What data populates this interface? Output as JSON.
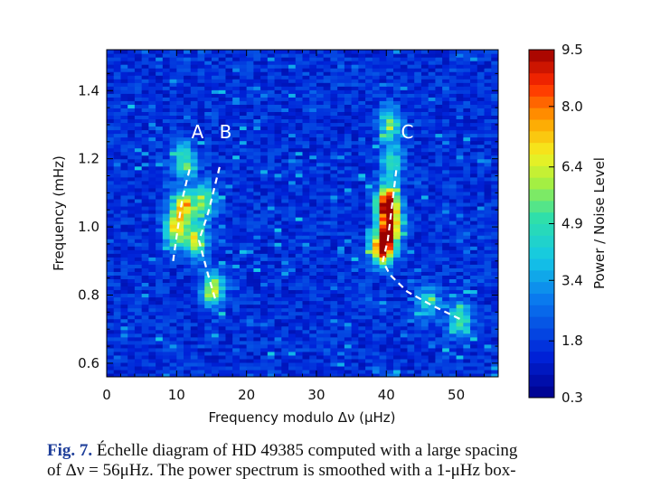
{
  "chart_data": {
    "type": "heatmap",
    "xlabel": "Frequency modulo Δν (μHz)",
    "ylabel": "Frequency (mHz)",
    "xlim": [
      0,
      56
    ],
    "ylim": [
      0.56,
      1.52
    ],
    "x_ticks": [
      "0",
      "10",
      "20",
      "30",
      "40",
      "50"
    ],
    "y_ticks": [
      "0.6",
      "0.8",
      "1.0",
      "1.2",
      "1.4"
    ],
    "colorbar": {
      "label": "Power / Noise Level",
      "range": [
        0.3,
        9.5
      ],
      "ticks": [
        "0.3",
        "1.8",
        "3.4",
        "4.9",
        "6.4",
        "8.0",
        "9.5"
      ]
    },
    "ridge_labels": [
      {
        "text": "A",
        "x": 13,
        "y": 1.26
      },
      {
        "text": "B",
        "x": 17,
        "y": 1.26
      },
      {
        "text": "C",
        "x": 43,
        "y": 1.26
      }
    ],
    "ridges": [
      {
        "label": "A",
        "points": [
          [
            9.5,
            0.9
          ],
          [
            10.2,
            1.0
          ],
          [
            10.8,
            1.08
          ],
          [
            11.5,
            1.14
          ],
          [
            12.0,
            1.18
          ]
        ]
      },
      {
        "label": "B",
        "points": [
          [
            15.5,
            0.79
          ],
          [
            14.5,
            0.86
          ],
          [
            13.2,
            0.96
          ],
          [
            14.5,
            1.04
          ],
          [
            16.2,
            1.18
          ]
        ]
      },
      {
        "label": "C",
        "points": [
          [
            50.5,
            0.73
          ],
          [
            46.5,
            0.77
          ],
          [
            43.0,
            0.81
          ],
          [
            40.5,
            0.86
          ],
          [
            39.5,
            0.9
          ],
          [
            40.2,
            0.96
          ],
          [
            40.8,
            1.06
          ],
          [
            41.5,
            1.18
          ]
        ]
      }
    ],
    "peaks": [
      {
        "x": 40.2,
        "y": 1.07,
        "power": 9.5
      },
      {
        "x": 39.5,
        "y": 0.94,
        "power": 9.0
      },
      {
        "x": 40.5,
        "y": 1.0,
        "power": 7.0
      },
      {
        "x": 11.0,
        "y": 1.06,
        "power": 6.5
      },
      {
        "x": 9.8,
        "y": 0.99,
        "power": 6.0
      },
      {
        "x": 12.8,
        "y": 0.96,
        "power": 6.0
      },
      {
        "x": 15.2,
        "y": 0.82,
        "power": 6.0
      },
      {
        "x": 14.0,
        "y": 1.08,
        "power": 5.5
      },
      {
        "x": 11.0,
        "y": 1.2,
        "power": 5.0
      },
      {
        "x": 40.5,
        "y": 1.3,
        "power": 5.0
      },
      {
        "x": 50.5,
        "y": 0.73,
        "power": 5.0
      },
      {
        "x": 46.0,
        "y": 0.78,
        "power": 4.0
      },
      {
        "x": 40.8,
        "y": 1.19,
        "power": 4.5
      }
    ]
  },
  "caption": {
    "label": "Fig. 7.",
    "line1": "Échelle diagram of HD 49385 computed with a large spacing",
    "line2": "of Δν = 56μHz. The power spectrum is smoothed with a 1-μHz box-"
  }
}
